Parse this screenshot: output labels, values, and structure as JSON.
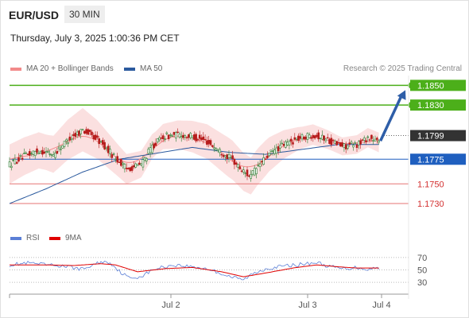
{
  "header": {
    "symbol": "EUR/USD",
    "timeframe": "30 MIN",
    "datetime": "Thursday, July 3, 2025 1:00:36 PM CET",
    "research": "Research © 2025 Trading Central"
  },
  "legend": {
    "main": [
      {
        "label": "MA 20 + Bollinger Bands",
        "color": "#f28a8a"
      },
      {
        "label": "MA 50",
        "color": "#2b5a9e"
      }
    ],
    "rsi": [
      {
        "label": "RSI",
        "color": "#5b7fd6"
      },
      {
        "label": "9MA",
        "color": "#e00000"
      }
    ]
  },
  "colors": {
    "bull": "#2e7d32",
    "bear": "#b71c1c",
    "resistance": "#4caf1a",
    "support": "#e57373",
    "pivot": "#1f5fbf",
    "current_bg": "#333333",
    "arrow": "#2e5ea8"
  },
  "chart_data": [
    {
      "type": "candlestick",
      "title": "EUR/USD",
      "x_ticks": [
        "Jul 2",
        "Jul 3",
        "Jul 4"
      ],
      "ylim": [
        1.1705,
        1.186
      ],
      "levels": [
        {
          "value": "1.1850",
          "kind": "resistance"
        },
        {
          "value": "1.1830",
          "kind": "resistance"
        },
        {
          "value": "1.1799",
          "kind": "current"
        },
        {
          "value": "1.1775",
          "kind": "pivot"
        },
        {
          "value": "1.1750",
          "kind": "support"
        },
        {
          "value": "1.1730",
          "kind": "support"
        }
      ],
      "forecast_target": 1.185,
      "close_profile": [
        [
          0,
          1.177
        ],
        [
          8,
          1.1778
        ],
        [
          16,
          1.1784
        ],
        [
          24,
          1.178
        ],
        [
          32,
          1.1795
        ],
        [
          40,
          1.1805
        ],
        [
          48,
          1.1795
        ],
        [
          56,
          1.178
        ],
        [
          64,
          1.1765
        ],
        [
          72,
          1.177
        ],
        [
          78,
          1.1788
        ],
        [
          84,
          1.1798
        ],
        [
          92,
          1.18
        ],
        [
          100,
          1.1798
        ],
        [
          108,
          1.1793
        ],
        [
          116,
          1.1782
        ],
        [
          122,
          1.1774
        ],
        [
          128,
          1.1762
        ],
        [
          132,
          1.1758
        ],
        [
          136,
          1.1768
        ],
        [
          142,
          1.178
        ],
        [
          150,
          1.179
        ],
        [
          158,
          1.1796
        ],
        [
          166,
          1.18
        ],
        [
          174,
          1.1795
        ],
        [
          182,
          1.1788
        ],
        [
          190,
          1.179
        ],
        [
          196,
          1.1797
        ],
        [
          202,
          1.1792
        ]
      ],
      "ma50_profile": [
        [
          0,
          1.173
        ],
        [
          20,
          1.1745
        ],
        [
          40,
          1.1762
        ],
        [
          60,
          1.1775
        ],
        [
          80,
          1.1781
        ],
        [
          100,
          1.1787
        ],
        [
          120,
          1.1782
        ],
        [
          140,
          1.178
        ],
        [
          160,
          1.1785
        ],
        [
          180,
          1.179
        ],
        [
          202,
          1.179
        ]
      ],
      "bb_half_width": [
        [
          0,
          0.002
        ],
        [
          20,
          0.0018
        ],
        [
          40,
          0.0022
        ],
        [
          60,
          0.0016
        ],
        [
          80,
          0.0012
        ],
        [
          100,
          0.0016
        ],
        [
          120,
          0.002
        ],
        [
          140,
          0.0018
        ],
        [
          160,
          0.0011
        ],
        [
          180,
          0.0009
        ],
        [
          202,
          0.001
        ]
      ]
    },
    {
      "type": "line",
      "title": "RSI",
      "y_ticks": [
        "70",
        "50",
        "30"
      ],
      "ylim": [
        20,
        80
      ],
      "rsi_profile": [
        [
          0,
          58
        ],
        [
          10,
          61
        ],
        [
          20,
          58
        ],
        [
          30,
          56
        ],
        [
          40,
          51
        ],
        [
          50,
          63
        ],
        [
          55,
          62
        ],
        [
          60,
          48
        ],
        [
          66,
          36
        ],
        [
          72,
          40
        ],
        [
          80,
          52
        ],
        [
          90,
          58
        ],
        [
          100,
          55
        ],
        [
          108,
          52
        ],
        [
          116,
          44
        ],
        [
          122,
          38
        ],
        [
          128,
          34
        ],
        [
          132,
          42
        ],
        [
          140,
          52
        ],
        [
          150,
          56
        ],
        [
          160,
          59
        ],
        [
          168,
          62
        ],
        [
          174,
          56
        ],
        [
          182,
          52
        ],
        [
          190,
          54
        ],
        [
          196,
          51
        ],
        [
          202,
          54
        ]
      ],
      "ma9_profile": [
        [
          0,
          58
        ],
        [
          20,
          58
        ],
        [
          35,
          57
        ],
        [
          50,
          60
        ],
        [
          58,
          58
        ],
        [
          70,
          47
        ],
        [
          85,
          52
        ],
        [
          100,
          54
        ],
        [
          116,
          47
        ],
        [
          128,
          39
        ],
        [
          140,
          45
        ],
        [
          155,
          53
        ],
        [
          168,
          58
        ],
        [
          180,
          55
        ],
        [
          190,
          53
        ],
        [
          202,
          53
        ]
      ]
    }
  ]
}
